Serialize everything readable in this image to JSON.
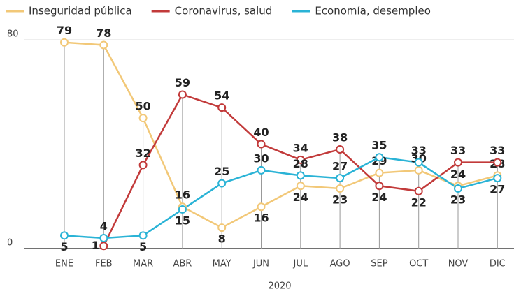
{
  "chart_data": {
    "type": "line",
    "x_label": "2020",
    "categories": [
      "ENE",
      "FEB",
      "MAR",
      "ABR",
      "MAY",
      "JUN",
      "JUL",
      "AGO",
      "SEP",
      "OCT",
      "NOV",
      "DIC"
    ],
    "series": [
      {
        "name": "Inseguridad pública",
        "color": "#f2c878",
        "values": [
          79,
          78,
          50,
          16,
          8,
          16,
          24,
          23,
          29,
          30,
          24,
          28
        ]
      },
      {
        "name": "Coronavirus, salud",
        "color": "#c23a3a",
        "values": [
          null,
          1,
          32,
          59,
          54,
          40,
          34,
          38,
          24,
          22,
          33,
          33
        ]
      },
      {
        "name": "Economía, desempleo",
        "color": "#2ab3d6",
        "values": [
          5,
          4,
          5,
          15,
          25,
          30,
          28,
          27,
          35,
          33,
          23,
          27
        ]
      }
    ],
    "ylim": [
      0,
      80
    ],
    "yticks": [
      0,
      80
    ],
    "grid": true
  }
}
